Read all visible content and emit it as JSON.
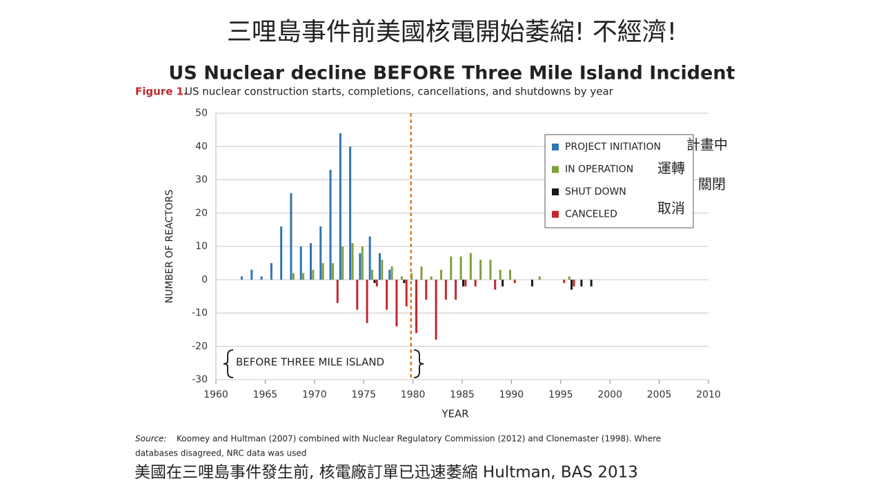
{
  "title": "三哩島事件前美國核電開始萎縮! 不經濟!",
  "subtitle": "US Nuclear decline BEFORE Three Mile Island Incident",
  "chart_data": {
    "type": "bar",
    "figure_label": "Figure 1.",
    "title": "US nuclear construction starts, completions, cancellations, and shutdowns by year",
    "x_label": "YEAR",
    "y_label": "NUMBER OF REACTORS",
    "x": [
      1963,
      1964,
      1965,
      1966,
      1967,
      1968,
      1969,
      1970,
      1971,
      1972,
      1973,
      1974,
      1975,
      1976,
      1977,
      1978,
      1979,
      1980,
      1981,
      1982,
      1983,
      1984,
      1985,
      1986,
      1987,
      1988,
      1989,
      1990,
      1991,
      1992,
      1993,
      1994,
      1995,
      1996,
      1997,
      1998
    ],
    "series": [
      {
        "name": "PROJECT INITIATION",
        "color": "#2e75b6",
        "values": [
          1,
          3,
          1,
          5,
          16,
          26,
          10,
          11,
          16,
          33,
          44,
          40,
          8,
          13,
          8,
          3,
          null,
          null,
          null,
          null,
          null,
          null,
          null,
          null,
          null,
          null,
          null,
          null,
          null,
          null,
          null,
          null,
          null,
          null,
          null,
          null
        ]
      },
      {
        "name": "IN OPERATION",
        "color": "#7f9f3f",
        "values": [
          null,
          null,
          null,
          null,
          null,
          2,
          2,
          3,
          5,
          5,
          10,
          11,
          10,
          3,
          6,
          4,
          1,
          2,
          4,
          1,
          3,
          7,
          7,
          8,
          6,
          6,
          3,
          3,
          null,
          null,
          1,
          null,
          null,
          1,
          null,
          null
        ]
      },
      {
        "name": "SHUT DOWN",
        "color": "#1a1a1a",
        "values": [
          null,
          null,
          null,
          null,
          null,
          null,
          null,
          null,
          null,
          null,
          null,
          null,
          null,
          -1,
          null,
          null,
          -1,
          null,
          null,
          null,
          null,
          null,
          -2,
          null,
          null,
          null,
          -2,
          null,
          null,
          -2,
          null,
          null,
          null,
          -3,
          -2,
          -2
        ]
      },
      {
        "name": "CANCELED",
        "color": "#c0282d",
        "values": [
          null,
          null,
          null,
          null,
          null,
          null,
          null,
          null,
          null,
          -7,
          null,
          -9,
          -13,
          -2,
          -9,
          -14,
          -8,
          -16,
          -6,
          -18,
          -6,
          -6,
          -2,
          -2,
          null,
          -3,
          null,
          -1,
          null,
          null,
          null,
          null,
          -1,
          -2,
          null,
          null
        ]
      }
    ],
    "xlim": [
      1960,
      2010
    ],
    "xticks": [
      1960,
      1965,
      1970,
      1975,
      1980,
      1985,
      1990,
      1995,
      2000,
      2005,
      2010
    ],
    "ylim": [
      -30,
      50
    ],
    "yticks": [
      50,
      40,
      30,
      20,
      10,
      0,
      -10,
      -20,
      -30
    ],
    "grid": true,
    "reference_line": {
      "x": 1979.8,
      "color": "#e07b1a"
    },
    "annotation": "BEFORE THREE MILE ISLAND",
    "legend_position": "upper right",
    "legend_translations": [
      "計畫中",
      "運轉",
      "關閉",
      "取消"
    ]
  },
  "source_label": "Source:",
  "source_text": "Koomey and Hultman (2007) combined with Nuclear Regulatory Commission (2012) and Clonemaster (1998). Where",
  "source_text_2": "databases disagreed, NRC data was used",
  "footer": "美國在三哩島事件發生前, 核電廠訂單已迅速萎縮 Hultman, BAS 2013"
}
